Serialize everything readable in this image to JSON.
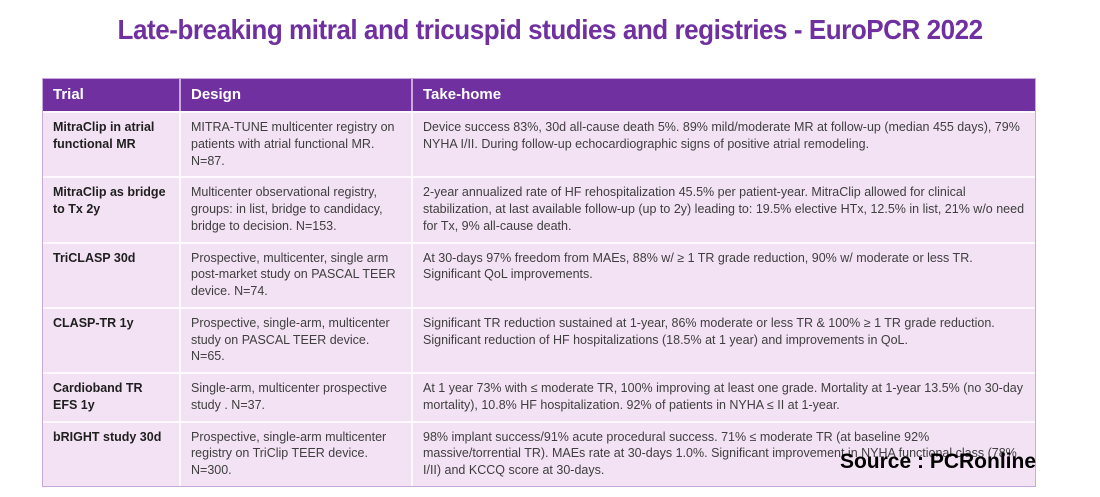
{
  "title": "Late-breaking mitral and tricuspid studies and registries - EuroPCR 2022",
  "source": "Source : PCRonline",
  "colors": {
    "title_purple": "#7030A0",
    "header_bg": "#7030A0",
    "header_text": "#FFFFFF",
    "row_bg": "#F2E2F3",
    "body_text": "#3F3F3F"
  },
  "table": {
    "columns": [
      {
        "label": "Trial"
      },
      {
        "label": "Design"
      },
      {
        "label": "Take-home"
      }
    ],
    "rows": [
      {
        "trial": "MitraClip in atrial functional MR",
        "design": "MITRA-TUNE multicenter registry on patients with atrial functional MR. N=87.",
        "take_home": "Device success 83%, 30d all-cause death 5%. 89% mild/moderate MR at follow-up (median 455 days), 79% NYHA I/II. During follow-up echocardiographic signs of positive atrial remodeling."
      },
      {
        "trial": "MitraClip as bridge to Tx 2y",
        "design": "Multicenter observational registry, groups: in list, bridge to candidacy, bridge to decision. N=153.",
        "take_home": "2-year annualized rate of HF rehospitalization 45.5% per patient-year. MitraClip allowed for clinical stabilization, at last available follow-up (up to 2y) leading to: 19.5% elective HTx, 12.5% in list, 21% w/o need for Tx, 9% all-cause death."
      },
      {
        "trial": "TriCLASP 30d",
        "design": "Prospective, multicenter, single arm post-market study on PASCAL TEER device. N=74.",
        "take_home": "At 30-days 97% freedom from MAEs, 88% w/ ≥ 1 TR grade reduction, 90% w/ moderate or less TR. Significant QoL improvements."
      },
      {
        "trial": "CLASP-TR 1y",
        "design": "Prospective, single-arm, multicenter study on PASCAL TEER device. N=65.",
        "take_home": "Significant TR reduction sustained at 1-year, 86% moderate or less TR & 100% ≥ 1 TR grade reduction. Significant reduction of HF hospitalizations (18.5% at 1 year) and improvements in QoL."
      },
      {
        "trial": "Cardioband TR EFS 1y",
        "design": "Single-arm, multicenter prospective study . N=37.",
        "take_home": "At 1 year 73% with ≤ moderate TR, 100% improving at least one grade. Mortality at 1-year 13.5% (no 30-day mortality), 10.8% HF hospitalization. 92% of patients in NYHA ≤ II at 1-year."
      },
      {
        "trial": "bRIGHT study 30d",
        "design": "Prospective, single-arm multicenter registry on TriClip TEER device. N=300.",
        "take_home": "98% implant success/91% acute procedural success. 71% ≤ moderate TR (at baseline 92% massive/torrential TR). MAEs rate at 30-days 1.0%. Significant improvement in NYHA functional class (78% I/II) and KCCQ score at 30-days."
      }
    ]
  }
}
